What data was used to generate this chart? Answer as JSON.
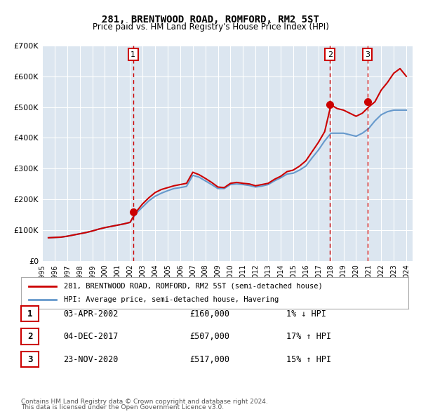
{
  "title": "281, BRENTWOOD ROAD, ROMFORD, RM2 5ST",
  "subtitle": "Price paid vs. HM Land Registry's House Price Index (HPI)",
  "xlabel": "",
  "ylabel": "",
  "background_color": "#dce6f0",
  "plot_bg_color": "#dce6f0",
  "fig_bg_color": "#ffffff",
  "ylim": [
    0,
    700000
  ],
  "yticks": [
    0,
    100000,
    200000,
    300000,
    400000,
    500000,
    600000,
    700000
  ],
  "ytick_labels": [
    "£0",
    "£100K",
    "£200K",
    "£300K",
    "£400K",
    "£500K",
    "£600K",
    "£700K"
  ],
  "red_line_color": "#cc0000",
  "blue_line_color": "#6699cc",
  "sale_marker_color": "#cc0000",
  "vline_color": "#cc0000",
  "sale_points": [
    {
      "year": 2002.25,
      "value": 160000,
      "label": "1"
    },
    {
      "year": 2017.92,
      "value": 507000,
      "label": "2"
    },
    {
      "year": 2020.9,
      "value": 517000,
      "label": "3"
    }
  ],
  "legend_red_label": "281, BRENTWOOD ROAD, ROMFORD, RM2 5ST (semi-detached house)",
  "legend_blue_label": "HPI: Average price, semi-detached house, Havering",
  "table_rows": [
    {
      "num": "1",
      "date": "03-APR-2002",
      "price": "£160,000",
      "change": "1% ↓ HPI"
    },
    {
      "num": "2",
      "date": "04-DEC-2017",
      "price": "£507,000",
      "change": "17% ↑ HPI"
    },
    {
      "num": "3",
      "date": "23-NOV-2020",
      "price": "£517,000",
      "change": "15% ↑ HPI"
    }
  ],
  "footer_line1": "Contains HM Land Registry data © Crown copyright and database right 2024.",
  "footer_line2": "This data is licensed under the Open Government Licence v3.0.",
  "hpi_data_x": [
    1995.5,
    1996.0,
    1996.5,
    1997.0,
    1997.5,
    1998.0,
    1998.5,
    1999.0,
    1999.5,
    2000.0,
    2000.5,
    2001.0,
    2001.5,
    2002.0,
    2002.5,
    2003.0,
    2003.5,
    2004.0,
    2004.5,
    2005.0,
    2005.5,
    2006.0,
    2006.5,
    2007.0,
    2007.5,
    2008.0,
    2008.5,
    2009.0,
    2009.5,
    2010.0,
    2010.5,
    2011.0,
    2011.5,
    2012.0,
    2012.5,
    2013.0,
    2013.5,
    2014.0,
    2014.5,
    2015.0,
    2015.5,
    2016.0,
    2016.5,
    2017.0,
    2017.5,
    2018.0,
    2018.5,
    2019.0,
    2019.5,
    2020.0,
    2020.5,
    2021.0,
    2021.5,
    2022.0,
    2022.5,
    2023.0,
    2023.5,
    2024.0
  ],
  "hpi_data_y": [
    75000,
    76000,
    77000,
    80000,
    84000,
    88000,
    92000,
    97000,
    103000,
    108000,
    112000,
    116000,
    120000,
    125000,
    155000,
    175000,
    195000,
    210000,
    220000,
    228000,
    235000,
    238000,
    242000,
    278000,
    272000,
    260000,
    248000,
    235000,
    235000,
    248000,
    250000,
    248000,
    245000,
    240000,
    243000,
    248000,
    260000,
    270000,
    282000,
    285000,
    295000,
    308000,
    335000,
    360000,
    390000,
    415000,
    415000,
    415000,
    410000,
    405000,
    415000,
    430000,
    455000,
    475000,
    485000,
    490000,
    490000,
    490000
  ],
  "red_data_x": [
    1995.5,
    1996.0,
    1996.5,
    1997.0,
    1997.5,
    1998.0,
    1998.5,
    1999.0,
    1999.5,
    2000.0,
    2000.5,
    2001.0,
    2001.5,
    2002.0,
    2002.5,
    2003.0,
    2003.5,
    2004.0,
    2004.5,
    2005.0,
    2005.5,
    2006.0,
    2006.5,
    2007.0,
    2007.5,
    2008.0,
    2008.5,
    2009.0,
    2009.5,
    2010.0,
    2010.5,
    2011.0,
    2011.5,
    2012.0,
    2012.5,
    2013.0,
    2013.5,
    2014.0,
    2014.5,
    2015.0,
    2015.5,
    2016.0,
    2016.5,
    2017.0,
    2017.5,
    2018.0,
    2018.5,
    2019.0,
    2019.5,
    2020.0,
    2020.5,
    2021.0,
    2021.5,
    2022.0,
    2022.5,
    2023.0,
    2023.5,
    2024.0
  ],
  "red_data_y": [
    75000,
    76000,
    77000,
    80000,
    84000,
    88000,
    92000,
    97000,
    103000,
    108000,
    112000,
    116000,
    120000,
    125000,
    160000,
    185000,
    205000,
    222000,
    232000,
    238000,
    244000,
    248000,
    252000,
    288000,
    280000,
    268000,
    255000,
    240000,
    238000,
    252000,
    255000,
    252000,
    250000,
    244000,
    248000,
    252000,
    265000,
    275000,
    290000,
    295000,
    308000,
    325000,
    355000,
    385000,
    420000,
    507000,
    495000,
    490000,
    480000,
    470000,
    480000,
    500000,
    517000,
    555000,
    580000,
    610000,
    625000,
    600000
  ]
}
